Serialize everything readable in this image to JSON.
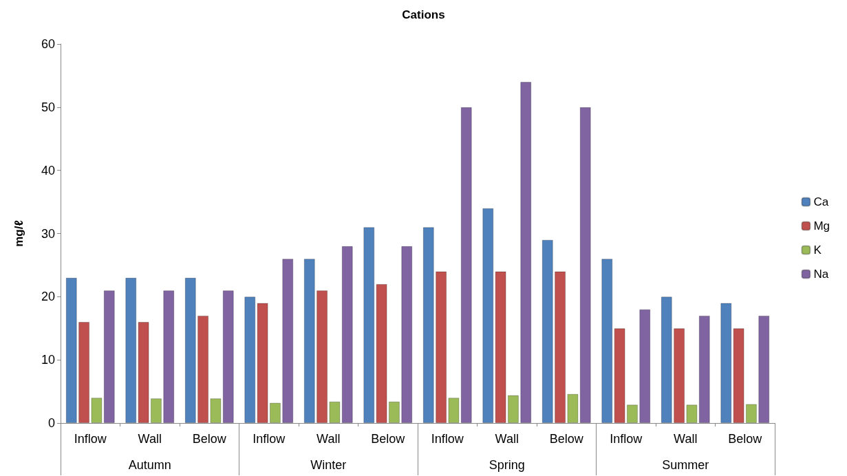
{
  "chart_data": {
    "type": "bar",
    "title": "Cations",
    "ylabel": "mg/ℓ",
    "categories": [
      "Inflow",
      "Wall",
      "Below",
      "Inflow",
      "Wall",
      "Below",
      "Inflow",
      "Wall",
      "Below",
      "Inflow",
      "Wall",
      "Below"
    ],
    "annotations": [
      "Autumn",
      "Winter",
      "Spring",
      "Summer"
    ],
    "series": [
      {
        "name": "Ca",
        "color": "#4f81bd",
        "values": [
          23,
          23,
          23,
          20,
          26,
          31,
          31,
          34,
          29,
          26,
          20,
          19
        ]
      },
      {
        "name": "Mg",
        "color": "#c0504d",
        "values": [
          16,
          16,
          17,
          19,
          21,
          22,
          24,
          24,
          24,
          15,
          15,
          15
        ]
      },
      {
        "name": "K",
        "color": "#9bbb59",
        "values": [
          4,
          3.9,
          3.9,
          3.2,
          3.4,
          3.4,
          4,
          4.4,
          4.6,
          2.9,
          2.9,
          3
        ]
      },
      {
        "name": "Na",
        "color": "#8064a2",
        "values": [
          21,
          21,
          21,
          26,
          28,
          28,
          50,
          54,
          50,
          18,
          17,
          17
        ]
      }
    ],
    "ylim": [
      0,
      60
    ],
    "yticks": [
      0,
      10,
      20,
      30,
      40,
      50,
      60
    ],
    "grid": false,
    "legend": "right"
  }
}
